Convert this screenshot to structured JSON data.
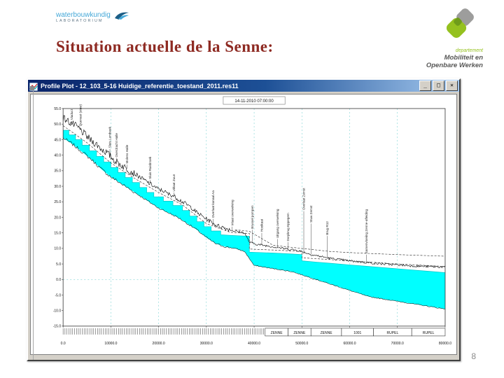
{
  "slide": {
    "title": "Situation actuelle de la Senne:",
    "page_number": "8",
    "accent_color": "#8e2a22"
  },
  "logos": {
    "waterlab": {
      "line1": "waterbouwkundig",
      "line2": "LABORATORIUM"
    },
    "departement": {
      "dept": "departement",
      "line1": "Mobiliteit en",
      "line2": "Openbare Werken"
    }
  },
  "window": {
    "title": "Profile Plot - 12_103_5-16 Huidige_referentie_toestand_2011.res11",
    "buttons": {
      "minimize": "_",
      "maximize": "□",
      "close": "✕"
    }
  },
  "chart_data": {
    "type": "line",
    "title": "14-11-2010 07:00:00",
    "xlabel": "",
    "ylabel": "",
    "xlim": [
      0,
      80000
    ],
    "ylim": [
      -15,
      55
    ],
    "x_ticks": [
      0,
      10000,
      20000,
      30000,
      40000,
      50000,
      60000,
      70000,
      80000
    ],
    "x_tick_labels": [
      "0.0",
      "10000.0",
      "20000.0",
      "30000.0",
      "40000.0",
      "50000.0",
      "60000.0",
      "70000.0",
      "80000.0"
    ],
    "y_ticks": [
      -15,
      -10,
      -5,
      0,
      5,
      10,
      15,
      20,
      25,
      30,
      35,
      40,
      45,
      50,
      55
    ],
    "grid": {
      "vertical_step": 10000,
      "zero_line": true
    },
    "water_color": "#00ffff",
    "frame_color": "#333333",
    "grid_color": "#5fc8c8",
    "series": {
      "water_surface": [
        [
          0,
          48
        ],
        [
          1200,
          48
        ],
        [
          1200,
          46.5
        ],
        [
          2600,
          46.5
        ],
        [
          2600,
          45
        ],
        [
          4000,
          45
        ],
        [
          4000,
          43.2
        ],
        [
          5500,
          43.2
        ],
        [
          5500,
          41.4
        ],
        [
          7000,
          41.4
        ],
        [
          7000,
          39.6
        ],
        [
          8500,
          39.6
        ],
        [
          8500,
          37.8
        ],
        [
          10000,
          37.8
        ],
        [
          10000,
          36
        ],
        [
          11500,
          36
        ],
        [
          11500,
          34.4
        ],
        [
          13000,
          34.4
        ],
        [
          13000,
          32.8
        ],
        [
          14500,
          32.8
        ],
        [
          14500,
          31.2
        ],
        [
          16000,
          31.2
        ],
        [
          16000,
          29.6
        ],
        [
          17500,
          29.6
        ],
        [
          17500,
          28
        ],
        [
          19000,
          28
        ],
        [
          19000,
          26.6
        ],
        [
          21000,
          26.6
        ],
        [
          21000,
          25.2
        ],
        [
          23000,
          25.2
        ],
        [
          23000,
          23.8
        ],
        [
          25000,
          23.8
        ],
        [
          25000,
          22.2
        ],
        [
          26500,
          22.2
        ],
        [
          26500,
          20.4
        ],
        [
          28000,
          20.4
        ],
        [
          28000,
          18.6
        ],
        [
          29500,
          18.6
        ],
        [
          29500,
          17
        ],
        [
          31000,
          17
        ],
        [
          31000,
          15.6
        ],
        [
          33000,
          15.6
        ],
        [
          33000,
          14.4
        ],
        [
          35000,
          14.2
        ],
        [
          39000,
          13.9
        ],
        [
          39000,
          8.8
        ],
        [
          44000,
          8.5
        ],
        [
          48000,
          8.2
        ],
        [
          50000,
          8
        ],
        [
          50000,
          6
        ],
        [
          53000,
          5.6
        ],
        [
          56000,
          5.2
        ],
        [
          60000,
          4.7
        ],
        [
          64000,
          4.2
        ],
        [
          68000,
          3.7
        ],
        [
          72000,
          3.2
        ],
        [
          76000,
          2.7
        ],
        [
          80000,
          2.2
        ]
      ],
      "river_bed": [
        [
          0,
          45.5
        ],
        [
          2000,
          43.5
        ],
        [
          4000,
          41
        ],
        [
          6000,
          38.5
        ],
        [
          8000,
          35.5
        ],
        [
          10000,
          33
        ],
        [
          12000,
          31
        ],
        [
          14000,
          29
        ],
        [
          16000,
          27
        ],
        [
          18000,
          25
        ],
        [
          20000,
          23
        ],
        [
          22000,
          21.5
        ],
        [
          24000,
          20
        ],
        [
          26000,
          18
        ],
        [
          28000,
          16
        ],
        [
          30000,
          13.5
        ],
        [
          32000,
          11.5
        ],
        [
          34000,
          10.5
        ],
        [
          36000,
          10
        ],
        [
          38000,
          9
        ],
        [
          40000,
          4.5
        ],
        [
          42000,
          4
        ],
        [
          44000,
          3.5
        ],
        [
          46000,
          3
        ],
        [
          48000,
          2.5
        ],
        [
          50000,
          1.5
        ],
        [
          52000,
          0.5
        ],
        [
          54000,
          -0.5
        ],
        [
          56000,
          -1.5
        ],
        [
          58000,
          -2.5
        ],
        [
          60000,
          -3.5
        ],
        [
          62000,
          -4.5
        ],
        [
          64000,
          -5.5
        ],
        [
          66000,
          -6
        ],
        [
          68000,
          -6.5
        ],
        [
          70000,
          -7
        ],
        [
          72000,
          -7.5
        ],
        [
          74000,
          -8
        ],
        [
          76000,
          -8.5
        ],
        [
          78000,
          -9
        ],
        [
          80000,
          -9.5
        ]
      ],
      "terrain": [
        [
          0,
          52
        ],
        [
          1000,
          51
        ],
        [
          2000,
          50
        ],
        [
          3000,
          49
        ],
        [
          4000,
          47.5
        ],
        [
          5000,
          46
        ],
        [
          6000,
          44.5
        ],
        [
          7000,
          43.5
        ],
        [
          8000,
          42
        ],
        [
          9000,
          41
        ],
        [
          10000,
          39.5
        ],
        [
          11000,
          38
        ],
        [
          12000,
          37
        ],
        [
          13000,
          36
        ],
        [
          14000,
          35
        ],
        [
          15000,
          34
        ],
        [
          16000,
          33
        ],
        [
          17000,
          32
        ],
        [
          18000,
          31
        ],
        [
          19000,
          30
        ],
        [
          20000,
          29
        ],
        [
          21000,
          28.5
        ],
        [
          22000,
          27.5
        ],
        [
          23000,
          27
        ],
        [
          24000,
          26
        ],
        [
          25000,
          25
        ],
        [
          26000,
          24
        ],
        [
          27000,
          23
        ],
        [
          28000,
          21.5
        ],
        [
          29000,
          20.5
        ],
        [
          30000,
          19.5
        ],
        [
          31000,
          18.5
        ],
        [
          32000,
          17.5
        ],
        [
          33000,
          17
        ],
        [
          34000,
          16.5
        ],
        [
          35000,
          16
        ],
        [
          36000,
          15.5
        ],
        [
          37000,
          15.3
        ],
        [
          38000,
          15
        ],
        [
          39000,
          12
        ],
        [
          40000,
          11.5
        ],
        [
          41000,
          11.2
        ],
        [
          42000,
          11
        ],
        [
          43000,
          10.8
        ],
        [
          44000,
          10.5
        ],
        [
          45000,
          10.3
        ],
        [
          46000,
          10
        ],
        [
          47000,
          9.8
        ],
        [
          48000,
          9.6
        ],
        [
          49000,
          9.4
        ],
        [
          50000,
          9
        ],
        [
          51000,
          8.5
        ],
        [
          52000,
          8
        ],
        [
          53000,
          7.7
        ],
        [
          54000,
          7.4
        ],
        [
          55000,
          7.1
        ],
        [
          56000,
          6.8
        ],
        [
          57000,
          6.6
        ],
        [
          58000,
          6.4
        ],
        [
          59000,
          6.2
        ],
        [
          60000,
          6
        ],
        [
          62000,
          5.7
        ],
        [
          64000,
          5.4
        ],
        [
          66000,
          5.1
        ],
        [
          68000,
          4.9
        ],
        [
          70000,
          4.7
        ],
        [
          72000,
          4.5
        ],
        [
          74000,
          4.3
        ],
        [
          76000,
          4.2
        ],
        [
          78000,
          4.1
        ],
        [
          80000,
          4
        ]
      ],
      "flood_level": [
        [
          0,
          49.5
        ],
        [
          5000,
          44
        ],
        [
          10000,
          37.5
        ],
        [
          15000,
          32.5
        ],
        [
          20000,
          28
        ],
        [
          25000,
          24
        ],
        [
          30000,
          18
        ],
        [
          35000,
          15.2
        ],
        [
          39000,
          14.8
        ],
        [
          39000,
          9.8
        ],
        [
          45000,
          9.4
        ],
        [
          50000,
          9
        ],
        [
          50000,
          7
        ],
        [
          55000,
          6.5
        ],
        [
          60000,
          6
        ],
        [
          65000,
          5.5
        ],
        [
          70000,
          5
        ],
        [
          75000,
          4.6
        ],
        [
          80000,
          4.2
        ]
      ],
      "crest_level": [
        [
          36000,
          16
        ],
        [
          39000,
          15.5
        ],
        [
          44000,
          11
        ],
        [
          50000,
          10
        ],
        [
          56000,
          9
        ],
        [
          62000,
          8.5
        ],
        [
          70000,
          8
        ],
        [
          80000,
          7.5
        ]
      ]
    },
    "noise_zones": [
      {
        "to": 15000,
        "amp": 2.4
      },
      {
        "to": 35000,
        "amp": 1.4
      },
      {
        "to": 80001,
        "amp": 0.7
      }
    ],
    "stations": [
      {
        "x": 1800,
        "label": "Viaduct",
        "base": 51
      },
      {
        "x": 3600,
        "label": "Quenast (stuw)",
        "base": 49
      },
      {
        "x": 9800,
        "label": "Sluis Lembeek",
        "base": 42
      },
      {
        "x": 11200,
        "label": "Overdracht Halle",
        "base": 39
      },
      {
        "x": 13400,
        "label": "Molens Halle",
        "base": 37
      },
      {
        "x": 18200,
        "label": "Sluis Ruisbroek",
        "base": 32
      },
      {
        "x": 23200,
        "label": "Uitlaat Zuun",
        "base": 28
      },
      {
        "x": 31400,
        "label": "Overlaat kanaal Aa",
        "base": 19.5
      },
      {
        "x": 35400,
        "label": "Inlaat overwelving",
        "base": 17
      },
      {
        "x": 39600,
        "label": "Brussel pompen",
        "base": 16
      },
      {
        "x": 41600,
        "label": "Hooikaai",
        "base": 15
      },
      {
        "x": 44900,
        "label": "Uitgang overwelving",
        "base": 13
      },
      {
        "x": 47100,
        "label": "Dorpbrug Eppegem",
        "base": 12
      },
      {
        "x": 50400,
        "label": "Overlaat Zemst",
        "base": 22
      },
      {
        "x": 51900,
        "label": "Stuw Zemst",
        "base": 18
      },
      {
        "x": 55300,
        "label": "Brug R12",
        "base": 14
      },
      {
        "x": 63500,
        "label": "Samenvloeiing Zenne-afleiding",
        "base": 8
      }
    ],
    "reaches": [
      {
        "from": 42300,
        "to": 47100,
        "label": "ZENNE"
      },
      {
        "from": 47100,
        "to": 51900,
        "label": "ZENNE"
      },
      {
        "from": 51900,
        "to": 58300,
        "label": "ZENNE"
      },
      {
        "from": 58300,
        "to": 65000,
        "label": "1001"
      },
      {
        "from": 65000,
        "to": 73000,
        "label": "RUPEL"
      },
      {
        "from": 73000,
        "to": 80000,
        "label": "RUPEL"
      }
    ],
    "section_ticks": {
      "from": 0,
      "to": 42000,
      "step": 400
    },
    "legend_position": "none"
  }
}
